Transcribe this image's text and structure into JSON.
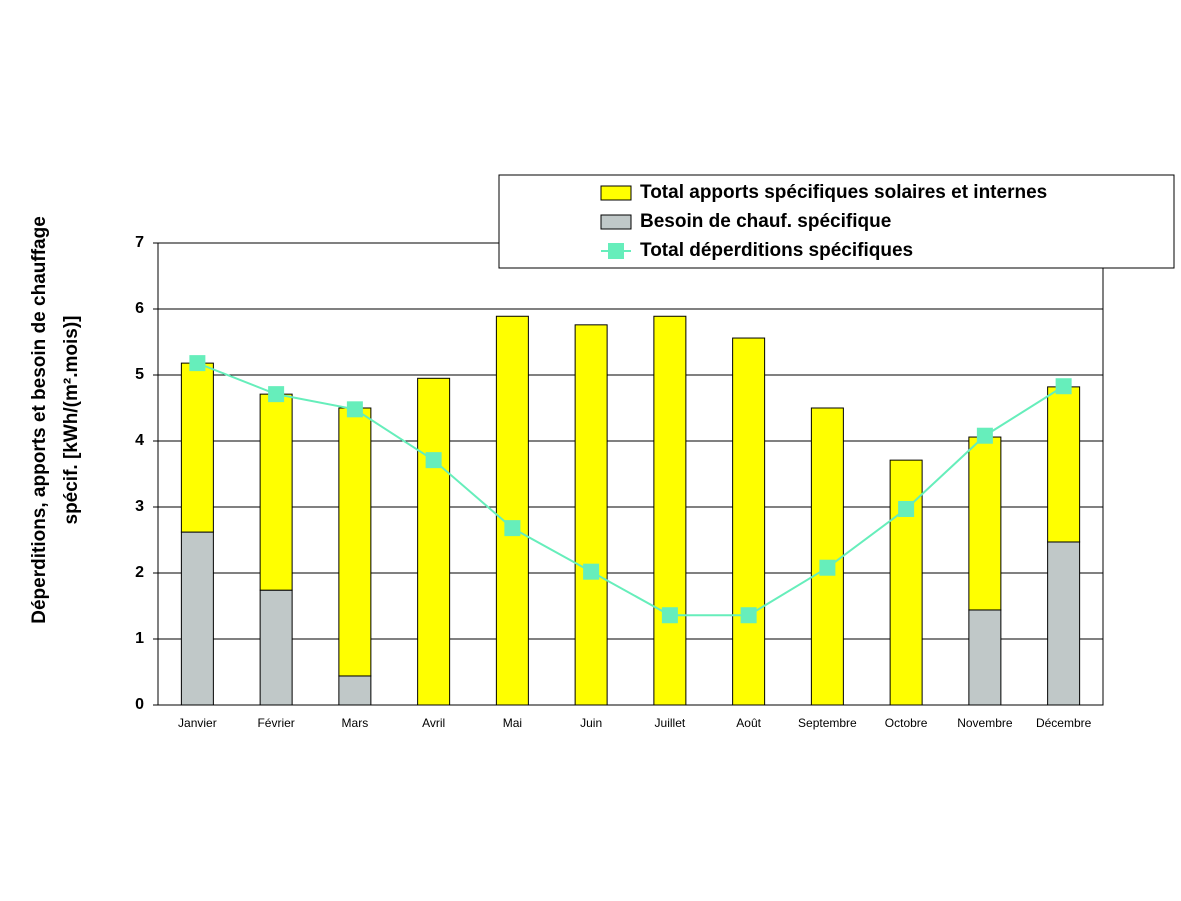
{
  "chart_data": {
    "type": "stacked_bar_line",
    "y_axis_label": [
      "Déperditions, apports et besoin de chauffage",
      "spécif. [kWh/(m².mois)]"
    ],
    "categories": [
      "Janvier",
      "Février",
      "Mars",
      "Avril",
      "Mai",
      "Juin",
      "Juillet",
      "Août",
      "Septembre",
      "Octobre",
      "Novembre",
      "Décembre"
    ],
    "series": [
      {
        "name": "Total apports spécifiques solaires et internes",
        "type": "bar",
        "color": "#ffff00",
        "values": [
          2.56,
          2.97,
          4.06,
          4.95,
          5.89,
          5.76,
          5.89,
          5.56,
          4.5,
          3.71,
          2.62,
          2.35
        ]
      },
      {
        "name": "Besoin de chauf. spécifique",
        "type": "bar",
        "color": "#c0c8c8",
        "values": [
          2.62,
          1.74,
          0.44,
          0,
          0,
          0,
          0,
          0,
          0,
          0,
          1.44,
          2.47
        ]
      },
      {
        "name": "Total déperditions spécifiques",
        "type": "line",
        "color": "#66eebb",
        "values": [
          5.18,
          4.71,
          4.48,
          3.71,
          2.68,
          2.02,
          1.36,
          1.36,
          2.08,
          2.97,
          4.08,
          4.83
        ]
      }
    ],
    "ylim": [
      0,
      7
    ],
    "yticks": [
      0,
      1,
      2,
      3,
      4,
      5,
      6,
      7
    ],
    "grid": true
  }
}
